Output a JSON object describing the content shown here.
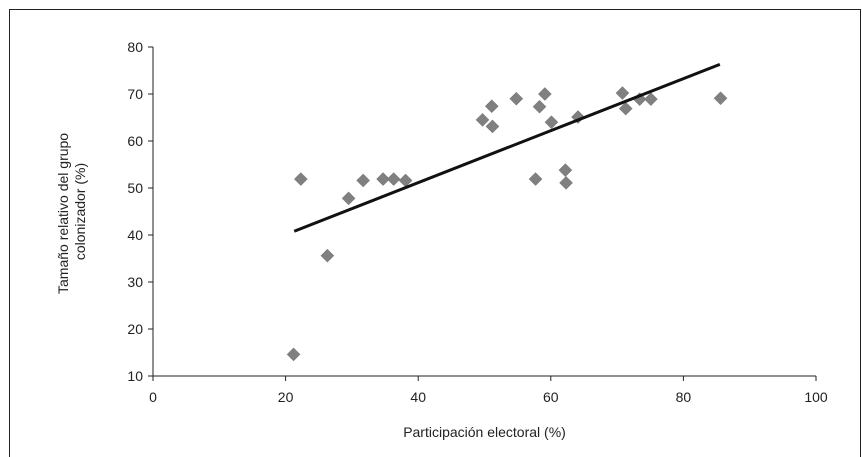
{
  "chart_data": {
    "type": "scatter",
    "title": "",
    "xlabel": "Participación electoral (%)",
    "ylabel_lines": [
      "Tamaño relativo del grupo",
      "colonizador (%)"
    ],
    "xlim": [
      0,
      100
    ],
    "ylim": [
      10,
      80
    ],
    "xticks": [
      0,
      20,
      40,
      60,
      80,
      100
    ],
    "yticks": [
      10,
      20,
      30,
      40,
      50,
      60,
      70,
      80
    ],
    "grid": false,
    "legend": "none",
    "marker": "diamond",
    "marker_color": "#808080",
    "trendline_color": "#111111",
    "points": [
      {
        "x": 21.2,
        "y": 14.6
      },
      {
        "x": 22.3,
        "y": 51.9
      },
      {
        "x": 26.3,
        "y": 35.6
      },
      {
        "x": 29.5,
        "y": 47.8
      },
      {
        "x": 31.7,
        "y": 51.6
      },
      {
        "x": 34.7,
        "y": 51.9
      },
      {
        "x": 36.3,
        "y": 51.9
      },
      {
        "x": 38.1,
        "y": 51.6
      },
      {
        "x": 49.7,
        "y": 64.5
      },
      {
        "x": 51.1,
        "y": 67.4
      },
      {
        "x": 51.2,
        "y": 63.1
      },
      {
        "x": 54.8,
        "y": 69.0
      },
      {
        "x": 57.7,
        "y": 51.9
      },
      {
        "x": 58.3,
        "y": 67.3
      },
      {
        "x": 59.1,
        "y": 70.0
      },
      {
        "x": 60.1,
        "y": 64.0
      },
      {
        "x": 62.2,
        "y": 53.8
      },
      {
        "x": 62.3,
        "y": 51.1
      },
      {
        "x": 64.1,
        "y": 65.1
      },
      {
        "x": 70.8,
        "y": 70.2
      },
      {
        "x": 71.3,
        "y": 66.9
      },
      {
        "x": 73.4,
        "y": 68.9
      },
      {
        "x": 75.1,
        "y": 68.9
      },
      {
        "x": 85.6,
        "y": 69.1
      }
    ],
    "trendline": {
      "x": [
        21.3,
        85.5
      ],
      "y": [
        40.8,
        76.3
      ]
    }
  }
}
